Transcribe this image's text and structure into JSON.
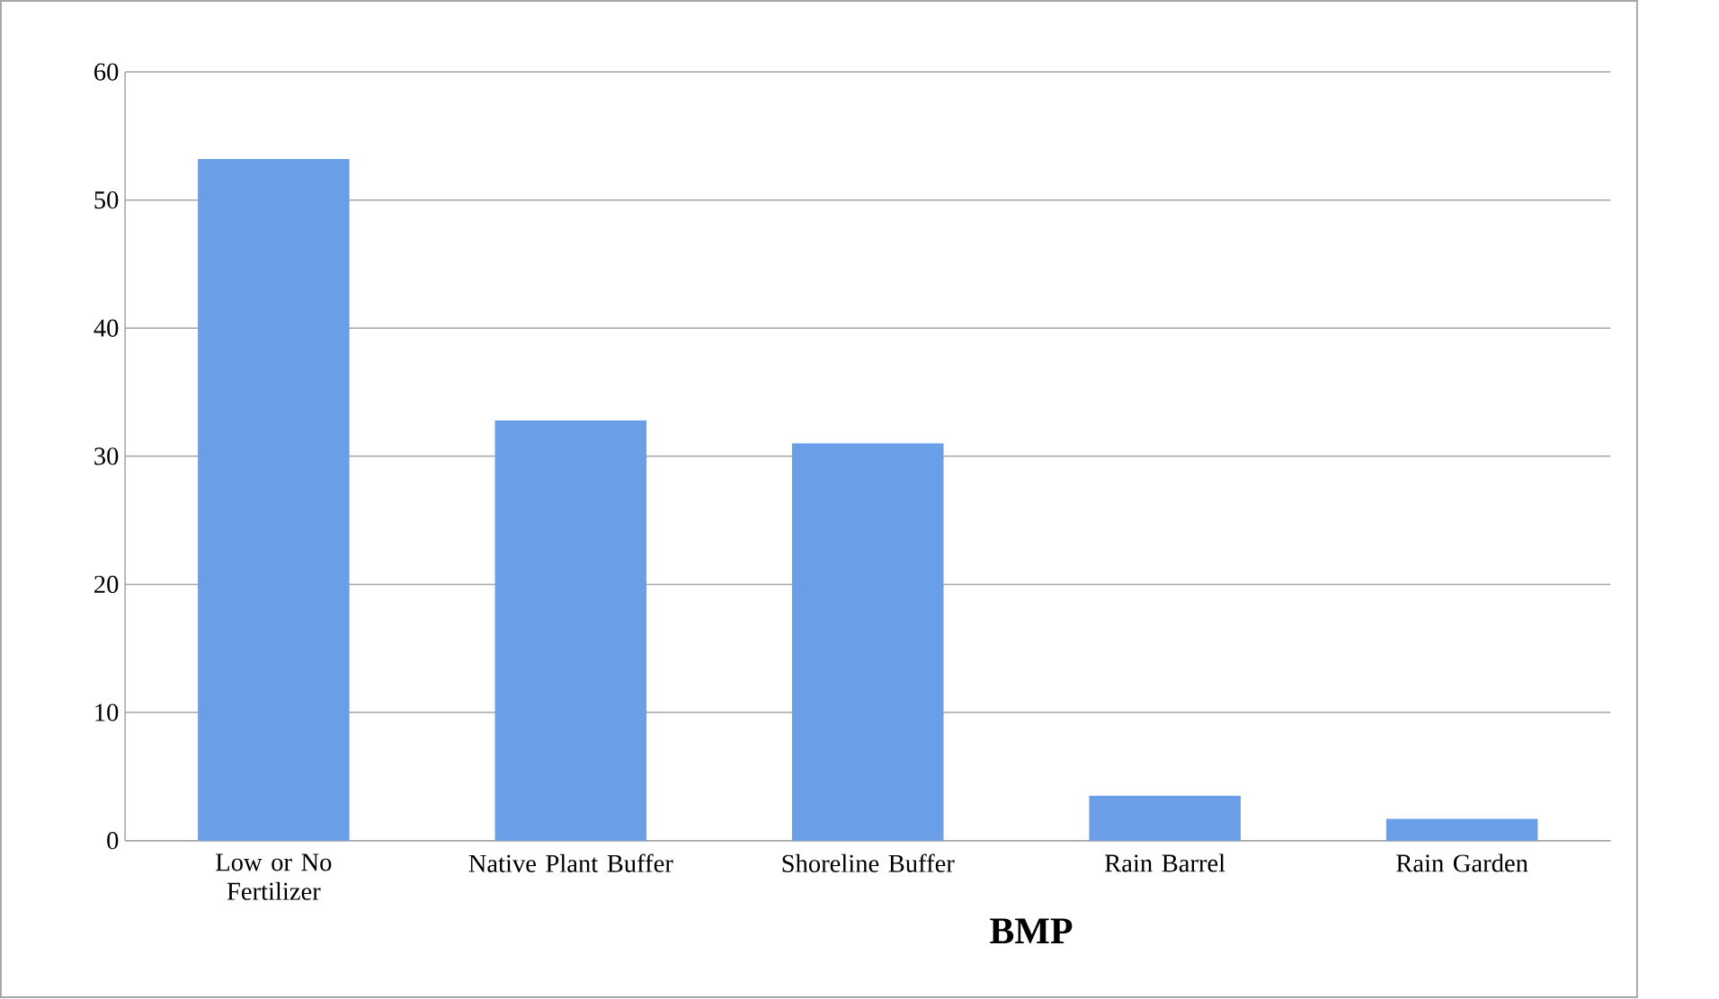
{
  "chart_data": {
    "type": "bar",
    "xlabel": "BMP",
    "categories": [
      "Low or No Fertilizer",
      "Native Plant Buffer",
      "Shoreline Buffer",
      "Rain Barrel",
      "Rain Garden"
    ],
    "values": [
      53.2,
      32.8,
      31.0,
      3.5,
      1.7
    ],
    "color": "#6a9fe8",
    "ylim": [
      0,
      60
    ],
    "yticks": [
      0,
      10,
      20,
      30,
      40,
      50,
      60
    ],
    "grid": "y"
  }
}
